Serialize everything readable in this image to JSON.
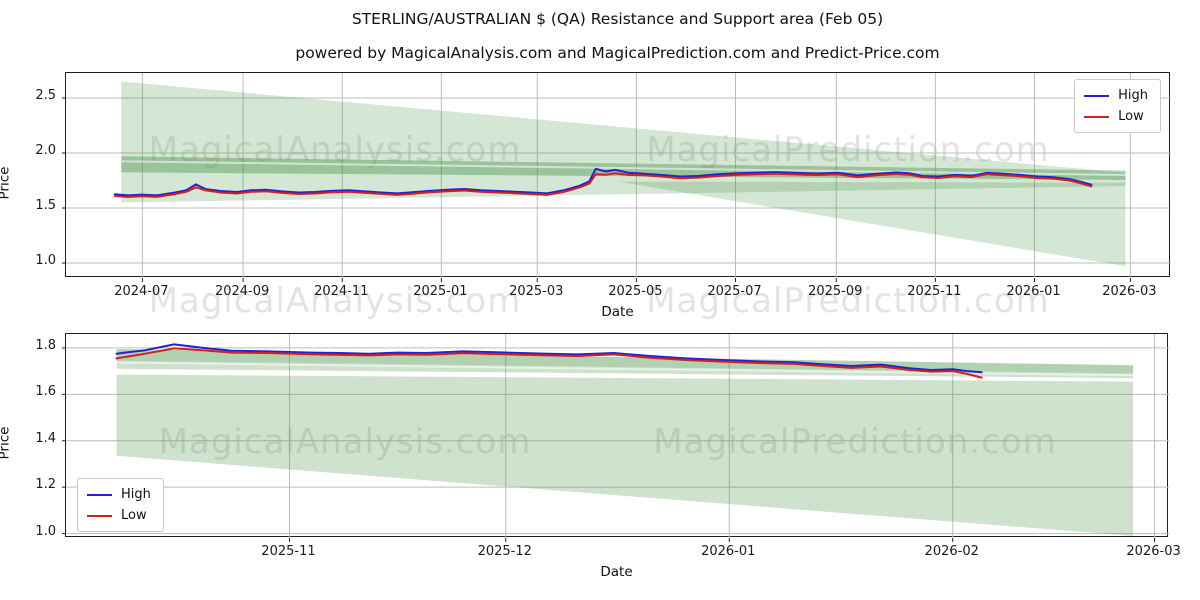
{
  "figure": {
    "title": "STERLING/AUSTRALIAN $ (QA) Resistance and Support area (Feb 05)",
    "subtitle": "powered by MagicalAnalysis.com and MagicalPrediction.com and Predict-Price.com",
    "watermarks": {
      "analysis": "MagicalAnalysis.com",
      "prediction": "MagicalPrediction.com"
    },
    "colors": {
      "high_line": "#2323cd",
      "low_line": "#d02020",
      "support_area_green": "#3d8b3d",
      "grid": "#bdbdbd"
    }
  },
  "chart_data": [
    {
      "type": "line",
      "name": "main-history-chart",
      "ylabel": "Price",
      "xlabel": "Date",
      "x_domain": [
        "2024-05-15",
        "2026-03-26"
      ],
      "y_domain": [
        0.864,
        2.727
      ],
      "grid": true,
      "legend_position": "top-right",
      "x_ticks": [
        {
          "date": "2024-07-01",
          "label": "2024-07"
        },
        {
          "date": "2024-09-01",
          "label": "2024-09"
        },
        {
          "date": "2024-11-01",
          "label": "2024-11"
        },
        {
          "date": "2025-01-01",
          "label": "2025-01"
        },
        {
          "date": "2025-03-01",
          "label": "2025-03"
        },
        {
          "date": "2025-05-01",
          "label": "2025-05"
        },
        {
          "date": "2025-07-01",
          "label": "2025-07"
        },
        {
          "date": "2025-09-01",
          "label": "2025-09"
        },
        {
          "date": "2025-11-01",
          "label": "2025-11"
        },
        {
          "date": "2026-01-01",
          "label": "2026-01"
        },
        {
          "date": "2026-03-01",
          "label": "2026-03"
        }
      ],
      "y_ticks": [
        1.0,
        1.5,
        2.0,
        2.5
      ],
      "x": [
        "2024-06-14",
        "2024-06-22",
        "2024-07-01",
        "2024-07-10",
        "2024-07-20",
        "2024-07-28",
        "2024-08-03",
        "2024-08-09",
        "2024-08-18",
        "2024-08-28",
        "2024-09-06",
        "2024-09-15",
        "2024-09-25",
        "2024-10-05",
        "2024-10-15",
        "2024-10-25",
        "2024-11-05",
        "2024-11-15",
        "2024-11-25",
        "2024-12-05",
        "2024-12-15",
        "2024-12-25",
        "2025-01-05",
        "2025-01-15",
        "2025-01-25",
        "2025-02-05",
        "2025-02-15",
        "2025-02-25",
        "2025-03-07",
        "2025-03-17",
        "2025-03-27",
        "2025-04-02",
        "2025-04-06",
        "2025-04-12",
        "2025-04-18",
        "2025-04-26",
        "2025-05-06",
        "2025-05-16",
        "2025-05-28",
        "2025-06-08",
        "2025-06-20",
        "2025-07-02",
        "2025-07-14",
        "2025-07-26",
        "2025-08-08",
        "2025-08-20",
        "2025-09-02",
        "2025-09-14",
        "2025-09-26",
        "2025-10-08",
        "2025-10-16",
        "2025-10-24",
        "2025-11-03",
        "2025-11-13",
        "2025-11-23",
        "2025-12-03",
        "2025-12-13",
        "2025-12-23",
        "2026-01-03",
        "2026-01-13",
        "2026-01-23",
        "2026-01-30",
        "2026-02-05"
      ],
      "series": [
        {
          "name": "High",
          "color": "#2323cd",
          "values": [
            1.625,
            1.615,
            1.622,
            1.615,
            1.638,
            1.662,
            1.715,
            1.672,
            1.655,
            1.646,
            1.661,
            1.666,
            1.651,
            1.641,
            1.646,
            1.656,
            1.661,
            1.651,
            1.641,
            1.633,
            1.645,
            1.656,
            1.666,
            1.673,
            1.661,
            1.655,
            1.648,
            1.641,
            1.633,
            1.66,
            1.702,
            1.742,
            1.856,
            1.832,
            1.846,
            1.821,
            1.811,
            1.801,
            1.786,
            1.791,
            1.806,
            1.816,
            1.821,
            1.826,
            1.819,
            1.813,
            1.821,
            1.796,
            1.811,
            1.823,
            1.816,
            1.791,
            1.786,
            1.801,
            1.793,
            1.819,
            1.811,
            1.801,
            1.786,
            1.779,
            1.761,
            1.736,
            1.712
          ]
        },
        {
          "name": "Low",
          "color": "#d02020",
          "values": [
            1.61,
            1.6,
            1.607,
            1.601,
            1.624,
            1.647,
            1.688,
            1.66,
            1.641,
            1.632,
            1.647,
            1.652,
            1.637,
            1.627,
            1.632,
            1.642,
            1.647,
            1.637,
            1.628,
            1.619,
            1.631,
            1.643,
            1.652,
            1.659,
            1.647,
            1.641,
            1.635,
            1.627,
            1.619,
            1.646,
            1.687,
            1.722,
            1.806,
            1.802,
            1.816,
            1.801,
            1.796,
            1.786,
            1.771,
            1.776,
            1.791,
            1.801,
            1.807,
            1.811,
            1.805,
            1.799,
            1.807,
            1.781,
            1.797,
            1.809,
            1.803,
            1.779,
            1.773,
            1.788,
            1.781,
            1.807,
            1.798,
            1.789,
            1.773,
            1.766,
            1.749,
            1.723,
            1.696
          ]
        }
      ],
      "areas": [
        {
          "name": "resistance-fan",
          "opacity": 0.22,
          "points": [
            [
              "2024-06-18",
              2.65
            ],
            [
              "2026-02-26",
              1.82
            ],
            [
              "2026-02-26",
              1.7
            ],
            [
              "2024-06-18",
              1.55
            ]
          ]
        },
        {
          "name": "support-wedge",
          "opacity": 0.22,
          "points": [
            [
              "2025-04-20",
              1.74
            ],
            [
              "2026-02-26",
              1.73
            ],
            [
              "2026-02-26",
              0.97
            ]
          ]
        },
        {
          "name": "resistance-band",
          "opacity": 0.38,
          "points": [
            [
              "2024-06-18",
              1.97
            ],
            [
              "2026-02-26",
              1.84
            ],
            [
              "2026-02-26",
              1.755
            ],
            [
              "2024-06-18",
              1.825
            ]
          ]
        }
      ],
      "white_streaks": [
        {
          "from": [
            "2024-06-18",
            1.925
          ],
          "to": [
            "2026-02-26",
            1.8
          ]
        }
      ]
    },
    {
      "type": "line",
      "name": "zoomed-recent-chart",
      "ylabel": "Price",
      "xlabel": "Date",
      "x_domain": [
        "2025-10-01",
        "2026-03-03"
      ],
      "y_domain": [
        0.981,
        1.86
      ],
      "grid": true,
      "legend_position": "bottom-left",
      "x_ticks": [
        {
          "date": "2025-11-01",
          "label": "2025-11"
        },
        {
          "date": "2025-12-01",
          "label": "2025-12"
        },
        {
          "date": "2026-01-01",
          "label": "2026-01"
        },
        {
          "date": "2026-02-01",
          "label": "2026-02"
        },
        {
          "date": "2026-03-01",
          "label": "2026-03"
        }
      ],
      "y_ticks": [
        1.0,
        1.2,
        1.4,
        1.6,
        1.8
      ],
      "x": [
        "2025-10-08",
        "2025-10-12",
        "2025-10-16",
        "2025-10-20",
        "2025-10-24",
        "2025-10-29",
        "2025-11-04",
        "2025-11-08",
        "2025-11-12",
        "2025-11-16",
        "2025-11-20",
        "2025-11-25",
        "2025-11-29",
        "2025-12-03",
        "2025-12-07",
        "2025-12-11",
        "2025-12-16",
        "2025-12-21",
        "2025-12-26",
        "2025-12-31",
        "2026-01-05",
        "2026-01-10",
        "2026-01-14",
        "2026-01-18",
        "2026-01-22",
        "2026-01-26",
        "2026-01-29",
        "2026-02-01",
        "2026-02-03",
        "2026-02-05"
      ],
      "series": [
        {
          "name": "High",
          "color": "#2323cd",
          "values": [
            1.775,
            1.79,
            1.815,
            1.8,
            1.788,
            1.785,
            1.78,
            1.778,
            1.775,
            1.78,
            1.778,
            1.785,
            1.782,
            1.778,
            1.775,
            1.772,
            1.778,
            1.765,
            1.755,
            1.748,
            1.742,
            1.738,
            1.73,
            1.722,
            1.728,
            1.712,
            1.705,
            1.708,
            1.7,
            1.695
          ]
        },
        {
          "name": "Low",
          "color": "#d02020",
          "values": [
            1.755,
            1.775,
            1.798,
            1.79,
            1.78,
            1.778,
            1.773,
            1.77,
            1.768,
            1.772,
            1.771,
            1.777,
            1.774,
            1.771,
            1.768,
            1.765,
            1.772,
            1.758,
            1.748,
            1.741,
            1.735,
            1.731,
            1.722,
            1.714,
            1.72,
            1.705,
            1.698,
            1.7,
            1.688,
            1.672
          ]
        }
      ],
      "areas": [
        {
          "name": "resistance-band",
          "opacity": 0.4,
          "points": [
            [
              "2025-10-08",
              1.795
            ],
            [
              "2026-02-26",
              1.725
            ],
            [
              "2026-02-26",
              1.69
            ],
            [
              "2025-10-08",
              1.745
            ]
          ]
        },
        {
          "name": "resistance-band-lower",
          "opacity": 0.26,
          "points": [
            [
              "2025-10-08",
              1.745
            ],
            [
              "2026-02-26",
              1.69
            ],
            [
              "2026-02-26",
              1.67
            ],
            [
              "2025-10-08",
              1.71
            ]
          ]
        },
        {
          "name": "support-area",
          "opacity": 0.25,
          "points": [
            [
              "2025-10-08",
              1.685
            ],
            [
              "2026-02-26",
              1.655
            ],
            [
              "2026-02-26",
              0.99
            ],
            [
              "2025-10-08",
              1.335
            ]
          ]
        }
      ],
      "white_streaks": [
        {
          "from": [
            "2025-10-08",
            1.737
          ],
          "to": [
            "2026-02-26",
            1.682
          ]
        }
      ]
    }
  ]
}
